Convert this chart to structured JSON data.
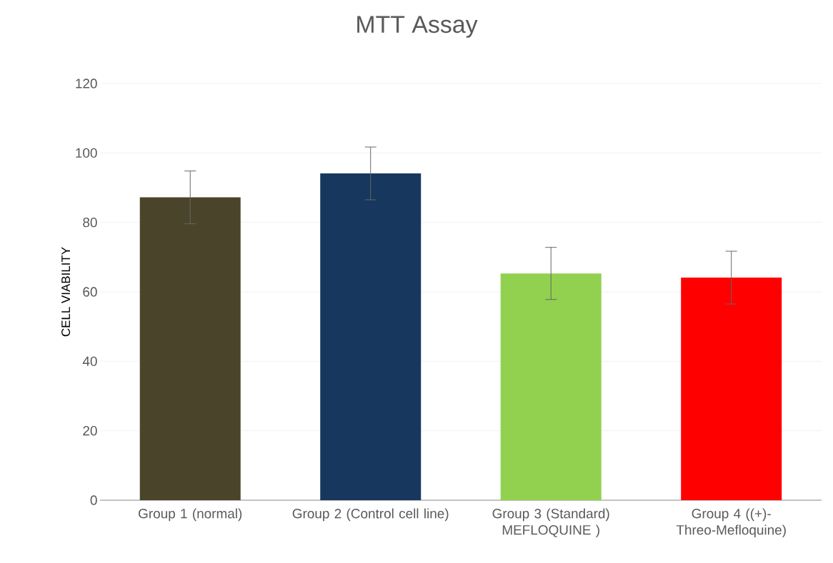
{
  "chart_data": {
    "type": "bar",
    "title": "MTT Assay",
    "ylabel": "CELL VIABILITY",
    "categories": [
      "Group 1 (normal)",
      "Group 2 (Control  cell line)",
      "Group 3 (Standard) MEFLOQUINE    )",
      "Group 4 ((+)-Threo-Mefloquine)"
    ],
    "values": [
      87.2,
      94.1,
      65.3,
      64.1
    ],
    "errors": [
      7.6,
      7.6,
      7.5,
      7.6
    ],
    "colors": [
      "#4a452a",
      "#17375e",
      "#92d050",
      "#ff0000"
    ],
    "ylim": [
      0,
      120
    ],
    "yticks": [
      0,
      20,
      40,
      60,
      80,
      100,
      120
    ],
    "grid": "y"
  }
}
